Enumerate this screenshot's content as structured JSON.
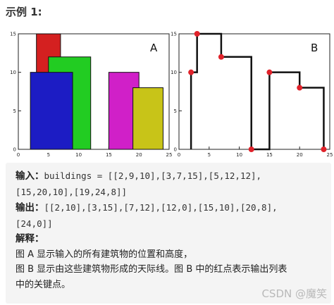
{
  "heading": "示例 1:",
  "chart_data": [
    {
      "type": "bar",
      "panel_label": "A",
      "xlim": [
        0,
        25
      ],
      "ylim": [
        0,
        15
      ],
      "xticks": [
        "0",
        "5",
        "10",
        "15",
        "20",
        "25"
      ],
      "yticks": [
        "0",
        "5",
        "10",
        "15"
      ],
      "buildings": [
        {
          "left": 2,
          "right": 9,
          "height": 10,
          "color": "#1c1cc4"
        },
        {
          "left": 3,
          "right": 7,
          "height": 15,
          "color": "#d42020"
        },
        {
          "left": 5,
          "right": 12,
          "height": 12,
          "color": "#22cc22"
        },
        {
          "left": 15,
          "right": 20,
          "height": 10,
          "color": "#d020c8"
        },
        {
          "left": 19,
          "right": 24,
          "height": 8,
          "color": "#c8c418"
        }
      ],
      "draw_order": [
        1,
        2,
        0,
        3,
        4
      ]
    },
    {
      "type": "line",
      "panel_label": "B",
      "xlim": [
        0,
        25
      ],
      "ylim": [
        0,
        15
      ],
      "xticks": [
        "0",
        "5",
        "10",
        "15",
        "20",
        "25"
      ],
      "yticks": [
        "0",
        "5",
        "10",
        "15"
      ],
      "skyline": [
        [
          2,
          10
        ],
        [
          3,
          15
        ],
        [
          7,
          12
        ],
        [
          12,
          0
        ],
        [
          15,
          10
        ],
        [
          20,
          8
        ],
        [
          24,
          0
        ]
      ],
      "line_color": "#111111",
      "point_color": "#e0222a"
    }
  ],
  "example": {
    "input_label": "输入",
    "input_value_1": "buildings = [[2,9,10],[3,7,15],[5,12,12],",
    "input_value_2": "[15,20,10],[19,24,8]]",
    "output_label": "输出",
    "output_value_1": "[[2,10],[3,15],[7,12],[12,0],[15,10],[20,8],",
    "output_value_2": "[24,0]]",
    "explain_label": "解释",
    "explain_1": "图 A 显示输入的所有建筑物的位置和高度，",
    "explain_2": "图 B 显示由这些建筑物形成的天际线。图 B 中的红点表示输出列表",
    "explain_3": "中的关键点。"
  },
  "watermark": "CSDN @魔笑"
}
